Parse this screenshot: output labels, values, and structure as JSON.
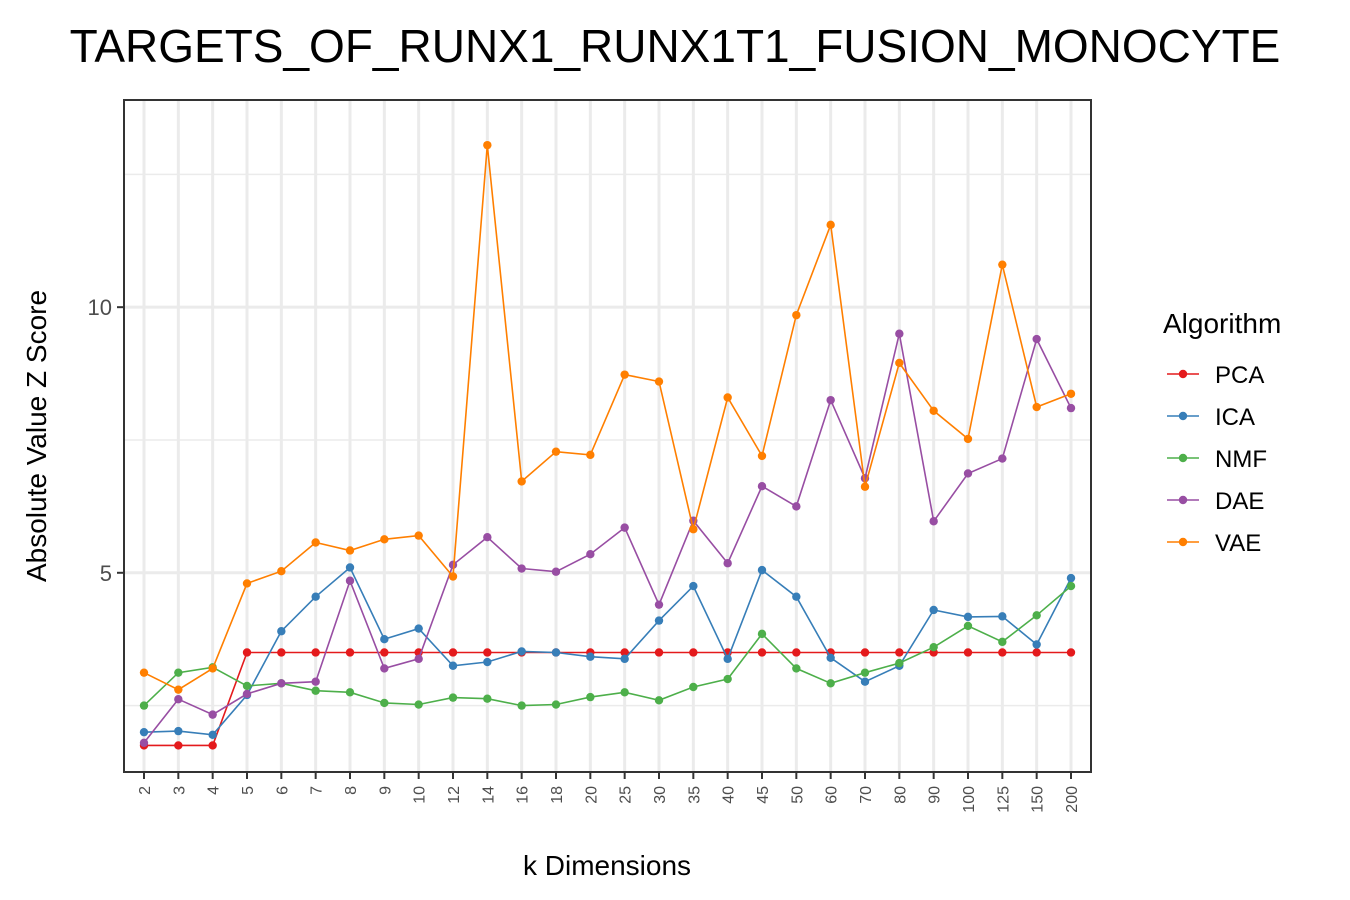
{
  "chart_data": {
    "type": "line",
    "title": "TARGETS_OF_RUNX1_RUNX1T1_FUSION_MONOCYTE",
    "xlabel": "k Dimensions",
    "ylabel": "Absolute Value Z Score",
    "categories": [
      "2",
      "3",
      "4",
      "5",
      "6",
      "7",
      "8",
      "9",
      "10",
      "12",
      "14",
      "16",
      "18",
      "20",
      "25",
      "30",
      "35",
      "40",
      "45",
      "50",
      "60",
      "70",
      "80",
      "90",
      "100",
      "125",
      "150",
      "200"
    ],
    "y_ticks": [
      "5",
      "10"
    ],
    "ylim": [
      1.25,
      13.9
    ],
    "grid": true,
    "legend": {
      "title": "Algorithm",
      "position": "right"
    },
    "series": [
      {
        "name": "PCA",
        "color": "#e41a1c",
        "values": [
          1.75,
          1.75,
          1.75,
          3.5,
          3.5,
          3.5,
          3.5,
          3.5,
          3.5,
          3.5,
          3.5,
          3.5,
          3.5,
          3.5,
          3.5,
          3.5,
          3.5,
          3.5,
          3.5,
          3.5,
          3.5,
          3.5,
          3.5,
          3.5,
          3.5,
          3.5,
          3.5,
          3.5
        ]
      },
      {
        "name": "ICA",
        "color": "#377eb8",
        "values": [
          2.0,
          2.02,
          1.95,
          2.7,
          3.9,
          4.55,
          5.1,
          3.75,
          3.95,
          3.25,
          3.32,
          3.52,
          3.5,
          3.42,
          3.38,
          4.1,
          4.75,
          3.38,
          5.05,
          4.55,
          3.4,
          2.95,
          3.25,
          4.3,
          4.17,
          4.18,
          3.65,
          4.9
        ]
      },
      {
        "name": "NMF",
        "color": "#4daf4a",
        "values": [
          2.5,
          3.12,
          3.22,
          2.87,
          2.92,
          2.78,
          2.75,
          2.55,
          2.52,
          2.65,
          2.63,
          2.5,
          2.52,
          2.66,
          2.75,
          2.6,
          2.85,
          3.0,
          3.85,
          3.2,
          2.92,
          3.12,
          3.3,
          3.6,
          4.0,
          3.7,
          4.2,
          4.75
        ]
      },
      {
        "name": "DAE",
        "color": "#984ea3",
        "values": [
          1.8,
          2.62,
          2.33,
          2.72,
          2.92,
          2.95,
          4.85,
          3.2,
          3.38,
          5.15,
          5.67,
          5.08,
          5.02,
          5.35,
          5.85,
          4.4,
          5.98,
          5.18,
          6.63,
          6.25,
          8.25,
          6.78,
          9.5,
          5.97,
          6.87,
          7.15,
          9.4,
          8.1
        ]
      },
      {
        "name": "VAE",
        "color": "#ff7f00",
        "values": [
          3.12,
          2.8,
          3.2,
          4.8,
          5.03,
          5.57,
          5.42,
          5.63,
          5.7,
          4.93,
          13.05,
          6.72,
          7.28,
          7.22,
          8.73,
          8.6,
          5.82,
          8.3,
          7.2,
          9.85,
          11.55,
          6.62,
          8.95,
          8.05,
          7.52,
          10.8,
          8.12,
          8.37
        ]
      }
    ]
  }
}
